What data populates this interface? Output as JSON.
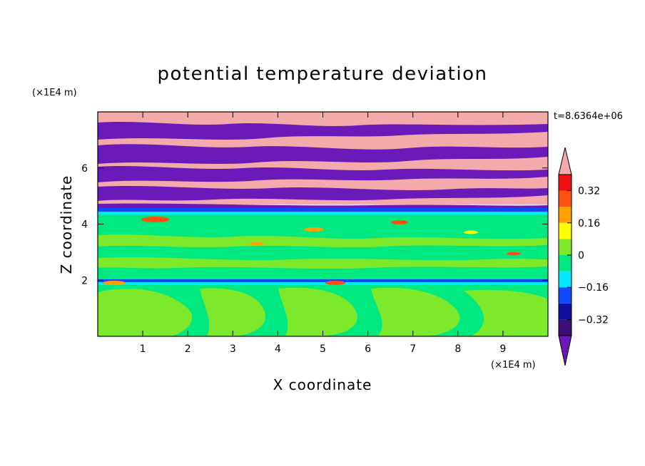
{
  "chart_data": {
    "type": "heatmap",
    "title": "potential temperature deviation",
    "xlabel": "X coordinate",
    "ylabel": "Z coordinate",
    "x_unit": "(×1E4 m)",
    "y_unit": "(×1E4 m)",
    "time_label": "t=8.6364e+06",
    "xlim": [
      0,
      10
    ],
    "ylim": [
      0,
      8
    ],
    "x_ticks": [
      "1",
      "2",
      "3",
      "4",
      "5",
      "6",
      "7",
      "8",
      "9"
    ],
    "y_ticks": [
      "2",
      "4",
      "6"
    ],
    "x_tick_values": [
      1,
      2,
      3,
      4,
      5,
      6,
      7,
      8,
      9
    ],
    "y_tick_values": [
      2,
      4,
      6
    ],
    "colorbar": {
      "levels": [
        -0.4,
        -0.32,
        -0.24,
        -0.16,
        -0.08,
        0,
        0.08,
        0.16,
        0.24,
        0.32,
        0.4
      ],
      "colors": [
        "#3d0d7a",
        "#1010a0",
        "#1048ff",
        "#00e8ff",
        "#00e880",
        "#7ee82a",
        "#ffff00",
        "#ffa000",
        "#ff5010",
        "#ee1010"
      ],
      "under_color": "#6a1ab8",
      "over_color": "#f4aaaa",
      "tick_labels": [
        "0.32",
        "0.16",
        "0",
        "−0.16",
        "−0.32"
      ],
      "tick_values": [
        0.32,
        0.16,
        0,
        -0.16,
        -0.32
      ]
    }
  }
}
